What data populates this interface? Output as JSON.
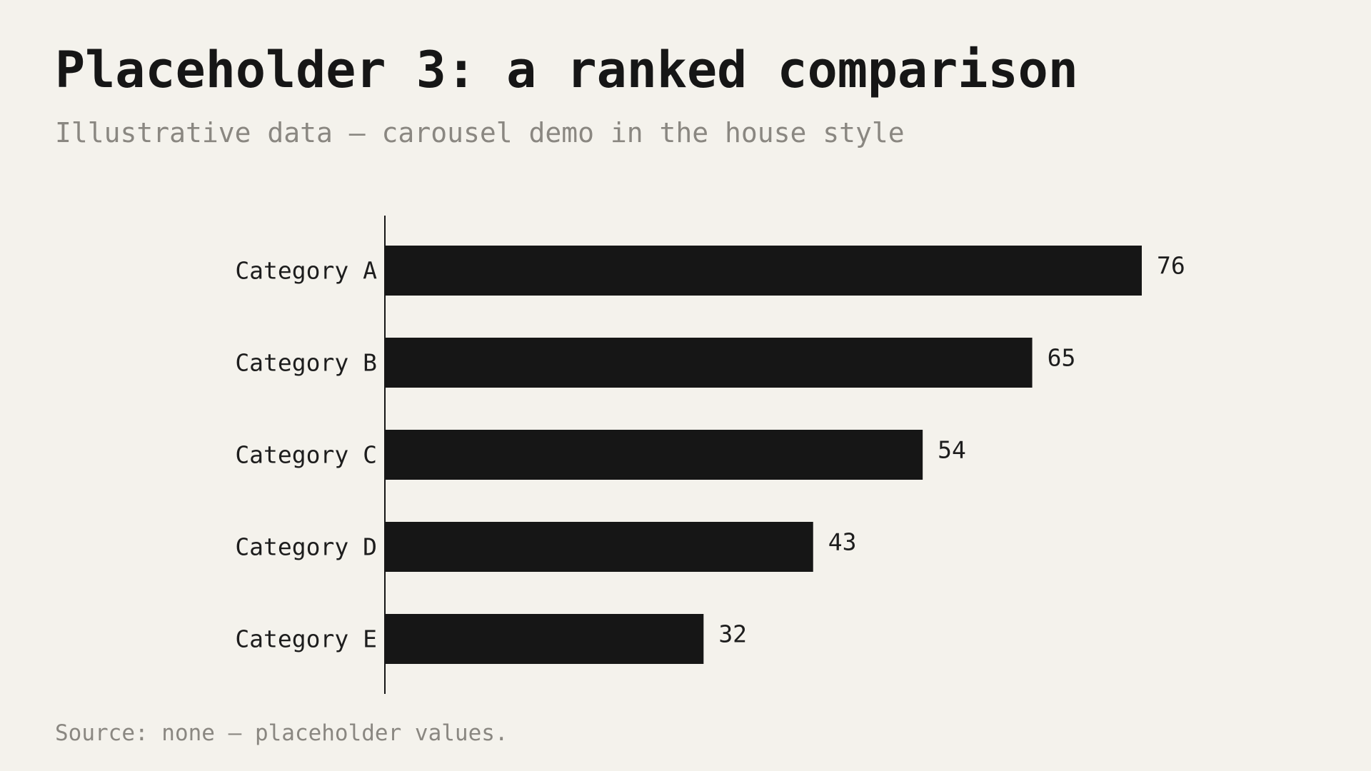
{
  "header": {
    "title": "Placeholder 3: a ranked comparison",
    "subtitle": "Illustrative data — carousel demo in the house style"
  },
  "footer": {
    "source": "Source: none — placeholder values."
  },
  "colors": {
    "background": "#f4f2ec",
    "bar": "#161616",
    "muted_text": "#8a8781"
  },
  "chart_data": {
    "type": "bar",
    "orientation": "horizontal",
    "categories": [
      "Category A",
      "Category B",
      "Category C",
      "Category D",
      "Category E"
    ],
    "values": [
      76,
      65,
      54,
      43,
      32
    ],
    "title": "Placeholder 3: a ranked comparison",
    "subtitle": "Illustrative data — carousel demo in the house style",
    "xlim": [
      0,
      76
    ],
    "grid": false,
    "legend": "none",
    "data_labels": true
  }
}
